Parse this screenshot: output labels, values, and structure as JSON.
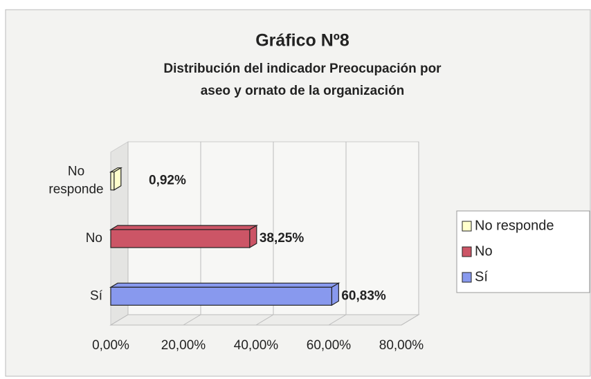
{
  "chart_data": {
    "type": "bar",
    "orientation": "horizontal",
    "three_d": true,
    "title": "Gráfico Nº8",
    "subtitle": "Distribución del indicador Preocupación por aseo y ornato de la organización",
    "categories": [
      "No responde",
      "No",
      "Sí"
    ],
    "series": [
      {
        "name": "No responde",
        "color": "#ffffcc",
        "values": [
          0.92,
          null,
          null
        ],
        "value_labels": [
          "0,92%",
          null,
          null
        ]
      },
      {
        "name": "No",
        "color": "#cc5566",
        "values": [
          null,
          38.25,
          null
        ],
        "value_labels": [
          null,
          "38,25%",
          null
        ]
      },
      {
        "name": "Sí",
        "color": "#8899ee",
        "values": [
          null,
          null,
          60.83
        ],
        "value_labels": [
          null,
          null,
          "60,83%"
        ]
      }
    ],
    "xlim": [
      0,
      80
    ],
    "xticks": [
      {
        "value": 0,
        "label": "0,00%"
      },
      {
        "value": 20,
        "label": "20,00%"
      },
      {
        "value": 40,
        "label": "40,00%"
      },
      {
        "value": 60,
        "label": "60,00%"
      },
      {
        "value": 80,
        "label": "80,00%"
      }
    ],
    "grid": true,
    "legend": "right"
  }
}
